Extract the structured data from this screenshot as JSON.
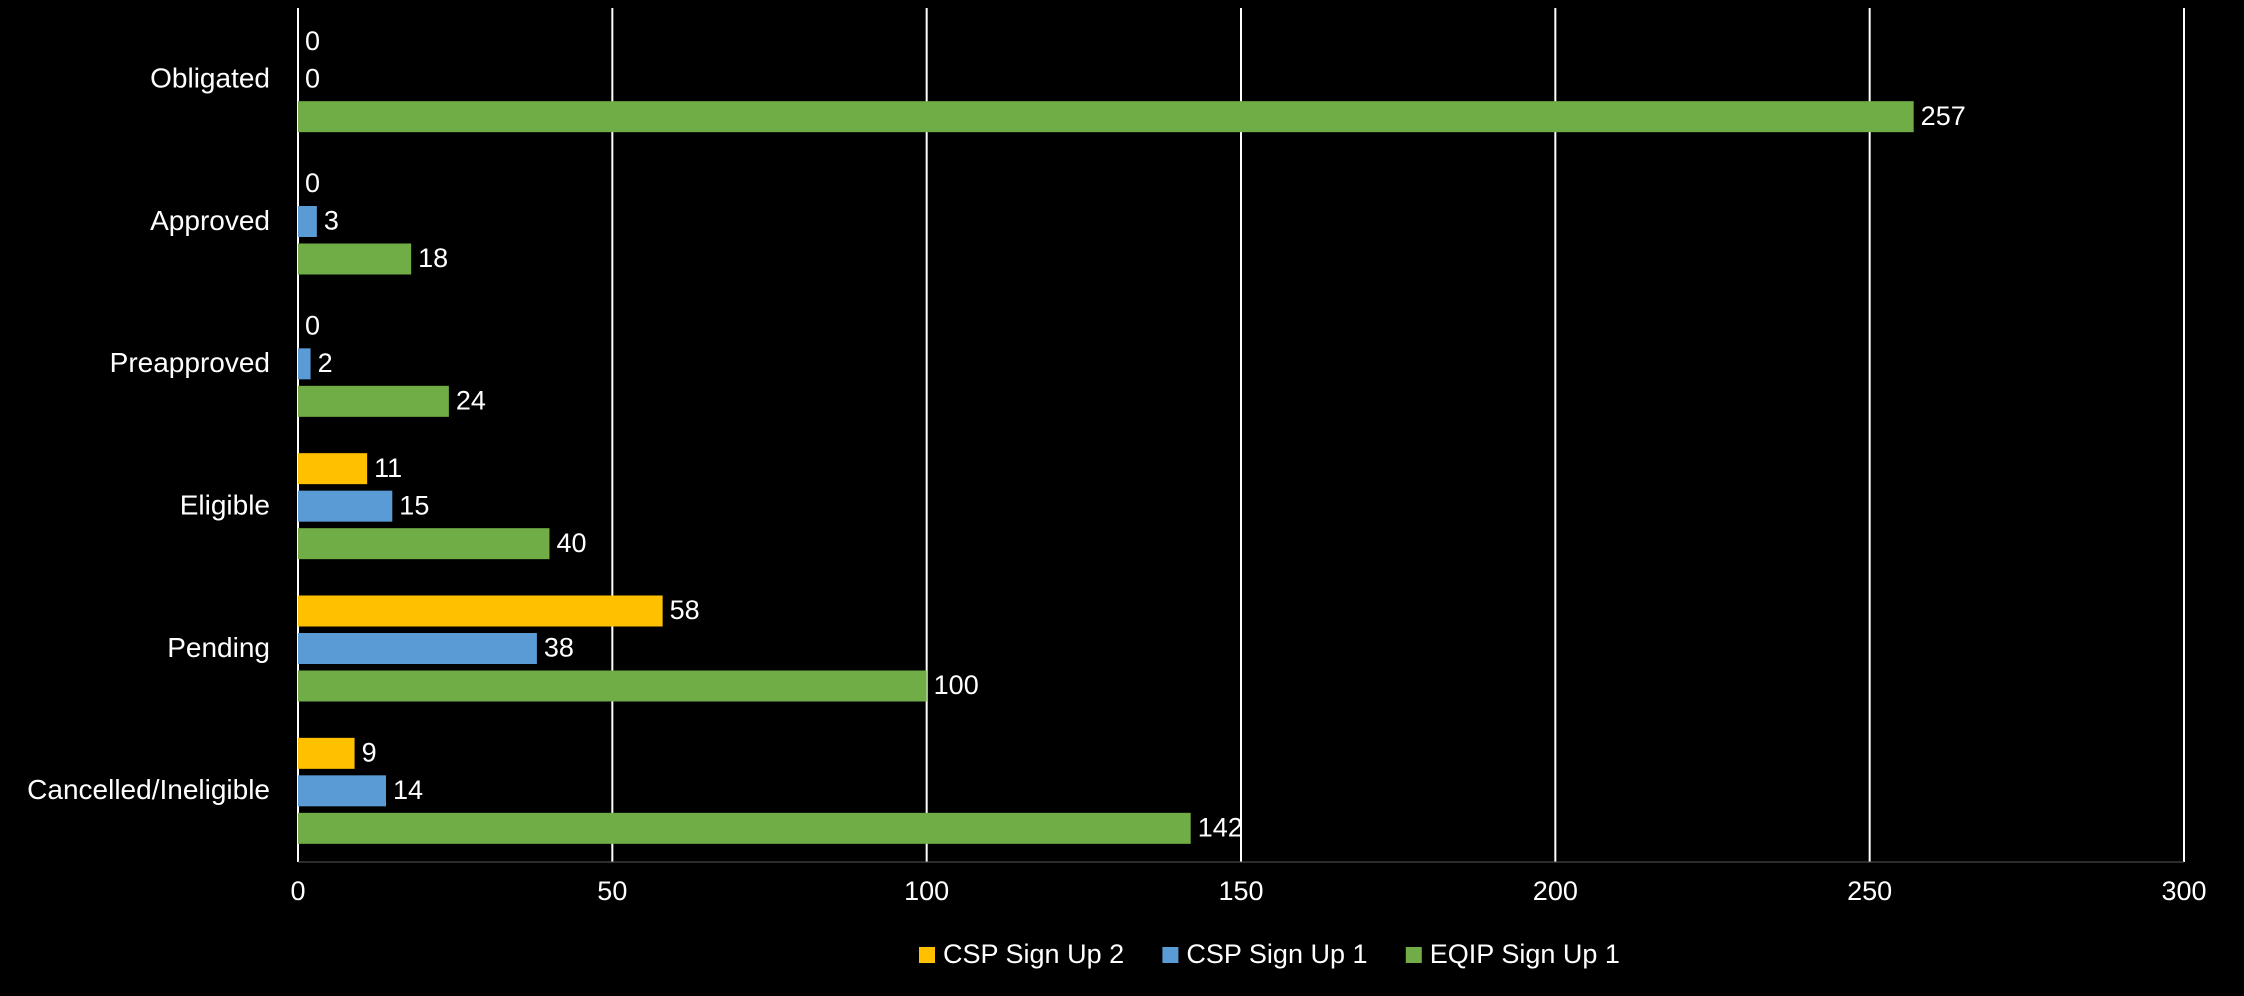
{
  "chart_data": {
    "type": "bar",
    "orientation": "horizontal",
    "title": "",
    "xlabel": "",
    "ylabel": "",
    "categories": [
      "Obligated",
      "Approved",
      "Preapproved",
      "Eligible",
      "Pending",
      "Cancelled/Ineligible"
    ],
    "series": [
      {
        "name": "CSP Sign Up 2",
        "color": "#FFC000",
        "values": [
          0,
          0,
          0,
          11,
          58,
          9
        ]
      },
      {
        "name": "CSP Sign Up 1",
        "color": "#5B9BD5",
        "values": [
          0,
          3,
          2,
          15,
          38,
          14
        ]
      },
      {
        "name": "EQIP Sign Up 1",
        "color": "#70AD47",
        "values": [
          257,
          18,
          24,
          40,
          100,
          142
        ]
      }
    ],
    "xlim": [
      0,
      300
    ],
    "x_ticks": [
      "0",
      "50",
      "100",
      "150",
      "200",
      "250",
      "300"
    ],
    "grid": "vertical",
    "legend_position": "bottom",
    "data_labels": true
  }
}
